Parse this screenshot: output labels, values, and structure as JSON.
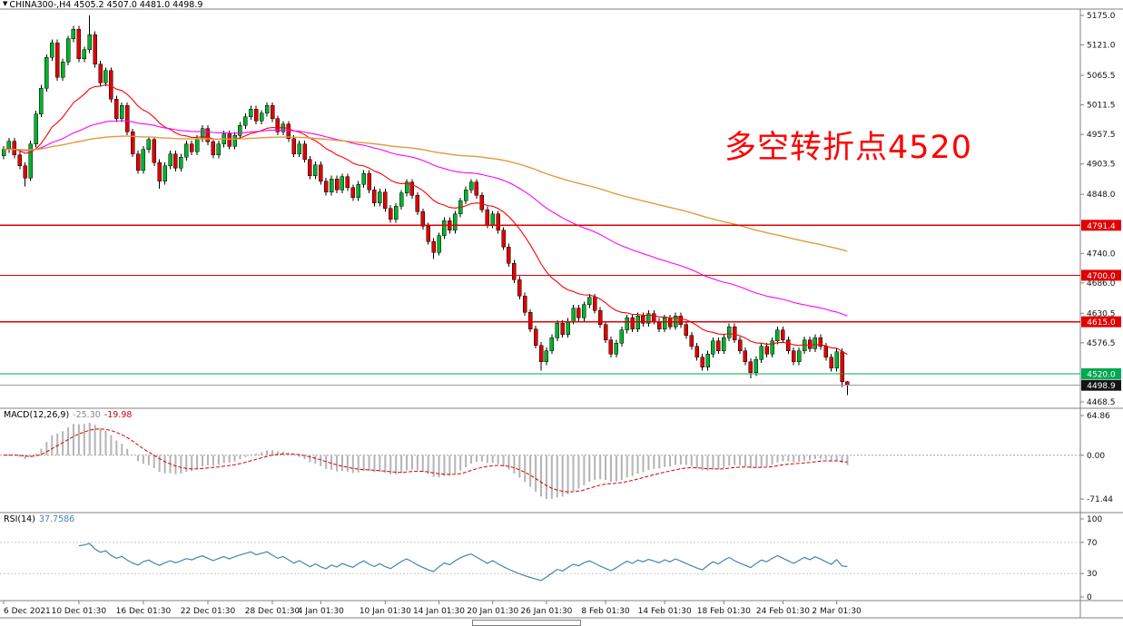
{
  "header": {
    "full": "CHINA300-,H4 4505.2 4507.0 4481.0 4498.9",
    "symbol": "CHINA300-",
    "timeframe": "H4",
    "open": "4505.2",
    "high": "4507.0",
    "low": "4481.0",
    "close": "4498.9"
  },
  "annotation": {
    "text": "多空转折点4520",
    "color": "#FF0000"
  },
  "indicators": {
    "macd": {
      "label": "MACD(12,26,9)",
      "main_value": "-25.30",
      "signal_value": "-19.98",
      "axis_labels": [
        "64.86",
        "0.00",
        "-71.44"
      ],
      "axis_values": [
        64.86,
        0.0,
        -71.44
      ],
      "histogram_color": "#b4b4b4",
      "signal_color": "#d40000"
    },
    "rsi": {
      "label": "RSI(14)",
      "value": "37.7586",
      "axis_labels": [
        "100",
        "70",
        "30",
        "0"
      ],
      "axis_values": [
        100,
        70,
        30,
        0
      ],
      "levels": [
        70,
        30
      ],
      "line_color": "#4682B4"
    }
  },
  "price_axis": {
    "tick_labels": [
      "5175.0",
      "5121.0",
      "5065.5",
      "5011.5",
      "4957.5",
      "4903.5",
      "4848.0",
      "4740.0",
      "4686.0",
      "4630.5",
      "4576.5",
      "4468.5"
    ],
    "tick_values": [
      5175.0,
      5121.0,
      5065.5,
      5011.5,
      4957.5,
      4903.5,
      4848.0,
      4740.0,
      4686.0,
      4630.5,
      4576.5,
      4468.5
    ]
  },
  "time_axis": {
    "labels": [
      {
        "text": "6 Dec 2021",
        "index": 0
      },
      {
        "text": "10 Dec 01:30",
        "index": 14
      },
      {
        "text": "16 Dec 01:30",
        "index": 26
      },
      {
        "text": "22 Dec 01:30",
        "index": 38
      },
      {
        "text": "28 Dec 01:30",
        "index": 50
      },
      {
        "text": "4 Jan 01:30",
        "index": 59
      },
      {
        "text": "10 Jan 01:30",
        "index": 71
      },
      {
        "text": "14 Jan 01:30",
        "index": 81
      },
      {
        "text": "20 Jan 01:30",
        "index": 91
      },
      {
        "text": "26 Jan 01:30",
        "index": 101
      },
      {
        "text": "8 Feb 01:30",
        "index": 112
      },
      {
        "text": "14 Feb 01:30",
        "index": 123
      },
      {
        "text": "18 Feb 01:30",
        "index": 134
      },
      {
        "text": "24 Feb 01:30",
        "index": 145
      },
      {
        "text": "2 Mar 01:30",
        "index": 155
      }
    ]
  },
  "levels": {
    "hlines": [
      {
        "price": 4791.4,
        "label": "4791.4",
        "color": "#e00000"
      },
      {
        "price": 4700.0,
        "label": "4700.0",
        "color": "#e00000"
      },
      {
        "price": 4615.0,
        "label": "4615.0",
        "color": "#e00000"
      },
      {
        "price": 4520.0,
        "label": "4520.0",
        "color": "#00a84f"
      }
    ],
    "current_price": {
      "value": 4498.9,
      "label": "4498.9",
      "line_color": "#9a9a9a",
      "badge_color": "#141414"
    }
  },
  "chart_data": {
    "type": "candlestick",
    "symbol": "CHINA300-",
    "timeframe": "H4",
    "title": "CHINA300- H4 candlestick chart with MACD(12,26,9) and RSI(14)",
    "visible_price_range": {
      "high": 5175.0,
      "low": 4468.5
    },
    "up_color": "#00b32c",
    "down_color": "#e00000",
    "moving_averages": [
      {
        "period": 21,
        "color": "#ff0000"
      },
      {
        "period": 72,
        "color": "#ff00ff"
      },
      {
        "period": 180,
        "color": "#e09a3e"
      }
    ],
    "macd_params": [
      12,
      26,
      9
    ],
    "rsi_period": 14,
    "candles": [
      [
        4918,
        4936,
        4912,
        4930
      ],
      [
        4930,
        4951,
        4924,
        4945
      ],
      [
        4945,
        4951,
        4914,
        4920
      ],
      [
        4920,
        4926,
        4894,
        4900
      ],
      [
        4900,
        4906,
        4862,
        4878
      ],
      [
        4878,
        4946,
        4872,
        4940
      ],
      [
        4940,
        5001,
        4934,
        4995
      ],
      [
        4995,
        5048,
        4989,
        5042
      ],
      [
        5042,
        5104,
        5036,
        5098
      ],
      [
        5098,
        5131,
        5092,
        5125
      ],
      [
        5125,
        5131,
        5056,
        5062
      ],
      [
        5062,
        5096,
        5056,
        5090
      ],
      [
        5090,
        5138,
        5084,
        5132
      ],
      [
        5132,
        5156,
        5126,
        5150
      ],
      [
        5150,
        5156,
        5090,
        5096
      ],
      [
        5096,
        5118,
        5090,
        5112
      ],
      [
        5112,
        5175,
        5106,
        5140
      ],
      [
        5140,
        5146,
        5080,
        5086
      ],
      [
        5086,
        5092,
        5046,
        5052
      ],
      [
        5052,
        5080,
        5046,
        5074
      ],
      [
        5074,
        5080,
        5016,
        5022
      ],
      [
        5022,
        5028,
        4980,
        4986
      ],
      [
        4986,
        5016,
        4980,
        5010
      ],
      [
        5010,
        5016,
        4956,
        4962
      ],
      [
        4962,
        4968,
        4916,
        4922
      ],
      [
        4922,
        4928,
        4886,
        4892
      ],
      [
        4892,
        4936,
        4886,
        4930
      ],
      [
        4930,
        4954,
        4924,
        4948
      ],
      [
        4948,
        4954,
        4900,
        4906
      ],
      [
        4906,
        4912,
        4858,
        4872
      ],
      [
        4872,
        4906,
        4866,
        4900
      ],
      [
        4900,
        4928,
        4894,
        4922
      ],
      [
        4922,
        4928,
        4890,
        4896
      ],
      [
        4896,
        4922,
        4890,
        4916
      ],
      [
        4916,
        4946,
        4910,
        4940
      ],
      [
        4940,
        4946,
        4920,
        4926
      ],
      [
        4926,
        4956,
        4920,
        4950
      ],
      [
        4950,
        4974,
        4944,
        4968
      ],
      [
        4968,
        4974,
        4938,
        4944
      ],
      [
        4944,
        4950,
        4914,
        4920
      ],
      [
        4920,
        4946,
        4914,
        4940
      ],
      [
        4940,
        4964,
        4934,
        4958
      ],
      [
        4958,
        4964,
        4930,
        4936
      ],
      [
        4936,
        4962,
        4930,
        4956
      ],
      [
        4956,
        4980,
        4950,
        4974
      ],
      [
        4974,
        4996,
        4968,
        4990
      ],
      [
        4990,
        5010,
        4984,
        5004
      ],
      [
        5004,
        5010,
        4976,
        4982
      ],
      [
        4982,
        5002,
        4976,
        4996
      ],
      [
        4996,
        5016,
        4990,
        5010
      ],
      [
        5010,
        5016,
        4980,
        4986
      ],
      [
        4986,
        4992,
        4956,
        4962
      ],
      [
        4962,
        4982,
        4956,
        4976
      ],
      [
        4976,
        4982,
        4944,
        4950
      ],
      [
        4950,
        4956,
        4916,
        4922
      ],
      [
        4922,
        4946,
        4916,
        4940
      ],
      [
        4940,
        4946,
        4906,
        4912
      ],
      [
        4912,
        4918,
        4876,
        4882
      ],
      [
        4882,
        4908,
        4876,
        4902
      ],
      [
        4902,
        4908,
        4866,
        4872
      ],
      [
        4872,
        4878,
        4846,
        4852
      ],
      [
        4852,
        4882,
        4846,
        4876
      ],
      [
        4876,
        4882,
        4850,
        4856
      ],
      [
        4856,
        4886,
        4850,
        4880
      ],
      [
        4880,
        4886,
        4854,
        4860
      ],
      [
        4860,
        4866,
        4836,
        4842
      ],
      [
        4842,
        4872,
        4836,
        4866
      ],
      [
        4866,
        4892,
        4860,
        4886
      ],
      [
        4886,
        4892,
        4850,
        4856
      ],
      [
        4856,
        4862,
        4826,
        4832
      ],
      [
        4832,
        4858,
        4826,
        4852
      ],
      [
        4852,
        4858,
        4816,
        4822
      ],
      [
        4822,
        4828,
        4796,
        4802
      ],
      [
        4802,
        4832,
        4796,
        4826
      ],
      [
        4826,
        4856,
        4820,
        4850
      ],
      [
        4850,
        4876,
        4844,
        4870
      ],
      [
        4870,
        4876,
        4840,
        4846
      ],
      [
        4846,
        4852,
        4810,
        4816
      ],
      [
        4816,
        4822,
        4784,
        4790
      ],
      [
        4790,
        4796,
        4756,
        4762
      ],
      [
        4762,
        4768,
        4730,
        4742
      ],
      [
        4742,
        4778,
        4736,
        4772
      ],
      [
        4772,
        4806,
        4766,
        4800
      ],
      [
        4800,
        4806,
        4776,
        4782
      ],
      [
        4782,
        4818,
        4776,
        4812
      ],
      [
        4812,
        4842,
        4806,
        4836
      ],
      [
        4836,
        4862,
        4830,
        4856
      ],
      [
        4856,
        4876,
        4850,
        4870
      ],
      [
        4870,
        4876,
        4840,
        4846
      ],
      [
        4846,
        4852,
        4814,
        4820
      ],
      [
        4820,
        4826,
        4786,
        4792
      ],
      [
        4792,
        4818,
        4786,
        4812
      ],
      [
        4812,
        4818,
        4776,
        4782
      ],
      [
        4782,
        4788,
        4746,
        4752
      ],
      [
        4752,
        4758,
        4716,
        4722
      ],
      [
        4722,
        4728,
        4686,
        4692
      ],
      [
        4692,
        4698,
        4656,
        4662
      ],
      [
        4662,
        4668,
        4626,
        4632
      ],
      [
        4632,
        4638,
        4596,
        4602
      ],
      [
        4602,
        4608,
        4566,
        4572
      ],
      [
        4572,
        4578,
        4526,
        4542
      ],
      [
        4542,
        4568,
        4536,
        4562
      ],
      [
        4562,
        4592,
        4556,
        4586
      ],
      [
        4586,
        4618,
        4580,
        4612
      ],
      [
        4612,
        4618,
        4586,
        4592
      ],
      [
        4592,
        4622,
        4586,
        4616
      ],
      [
        4616,
        4646,
        4610,
        4640
      ],
      [
        4640,
        4646,
        4616,
        4622
      ],
      [
        4622,
        4652,
        4616,
        4646
      ],
      [
        4646,
        4666,
        4640,
        4660
      ],
      [
        4660,
        4666,
        4630,
        4636
      ],
      [
        4636,
        4642,
        4604,
        4610
      ],
      [
        4610,
        4616,
        4576,
        4582
      ],
      [
        4582,
        4588,
        4550,
        4556
      ],
      [
        4556,
        4582,
        4550,
        4576
      ],
      [
        4576,
        4606,
        4570,
        4600
      ],
      [
        4600,
        4628,
        4594,
        4622
      ],
      [
        4622,
        4628,
        4596,
        4602
      ],
      [
        4602,
        4632,
        4596,
        4626
      ],
      [
        4626,
        4632,
        4606,
        4612
      ],
      [
        4612,
        4636,
        4606,
        4630
      ],
      [
        4630,
        4636,
        4610,
        4616
      ],
      [
        4616,
        4622,
        4596,
        4602
      ],
      [
        4602,
        4628,
        4596,
        4622
      ],
      [
        4622,
        4628,
        4600,
        4606
      ],
      [
        4606,
        4632,
        4600,
        4626
      ],
      [
        4626,
        4632,
        4604,
        4610
      ],
      [
        4610,
        4616,
        4584,
        4590
      ],
      [
        4590,
        4596,
        4564,
        4570
      ],
      [
        4570,
        4576,
        4544,
        4550
      ],
      [
        4550,
        4556,
        4526,
        4532
      ],
      [
        4532,
        4562,
        4526,
        4556
      ],
      [
        4556,
        4586,
        4550,
        4580
      ],
      [
        4580,
        4586,
        4556,
        4562
      ],
      [
        4562,
        4592,
        4556,
        4586
      ],
      [
        4586,
        4612,
        4580,
        4606
      ],
      [
        4606,
        4612,
        4576,
        4582
      ],
      [
        4582,
        4588,
        4556,
        4562
      ],
      [
        4562,
        4568,
        4536,
        4542
      ],
      [
        4542,
        4548,
        4512,
        4522
      ],
      [
        4522,
        4552,
        4516,
        4546
      ],
      [
        4546,
        4576,
        4540,
        4570
      ],
      [
        4570,
        4576,
        4550,
        4556
      ],
      [
        4556,
        4586,
        4550,
        4580
      ],
      [
        4580,
        4606,
        4574,
        4600
      ],
      [
        4600,
        4606,
        4576,
        4582
      ],
      [
        4582,
        4588,
        4556,
        4562
      ],
      [
        4562,
        4568,
        4536,
        4542
      ],
      [
        4542,
        4568,
        4536,
        4562
      ],
      [
        4562,
        4588,
        4556,
        4582
      ],
      [
        4582,
        4588,
        4560,
        4566
      ],
      [
        4566,
        4592,
        4560,
        4586
      ],
      [
        4586,
        4592,
        4564,
        4570
      ],
      [
        4570,
        4576,
        4544,
        4550
      ],
      [
        4550,
        4556,
        4524,
        4530
      ],
      [
        4530,
        4566,
        4524,
        4560
      ],
      [
        4560,
        4566,
        4496,
        4505
      ],
      [
        4505.2,
        4507.0,
        4481.0,
        4498.9
      ]
    ]
  }
}
